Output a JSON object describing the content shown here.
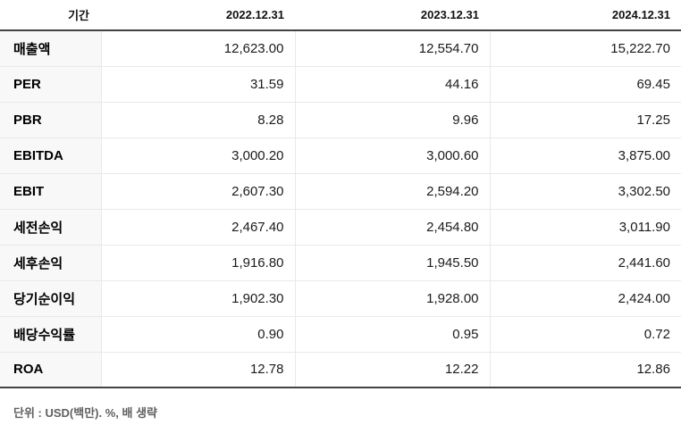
{
  "table": {
    "header": {
      "period_label": "기간",
      "columns": [
        "2022.12.31",
        "2023.12.31",
        "2024.12.31"
      ]
    },
    "rows": [
      {
        "label": "매출액",
        "values": [
          "12,623.00",
          "12,554.70",
          "15,222.70"
        ]
      },
      {
        "label": "PER",
        "values": [
          "31.59",
          "44.16",
          "69.45"
        ]
      },
      {
        "label": "PBR",
        "values": [
          "8.28",
          "9.96",
          "17.25"
        ]
      },
      {
        "label": "EBITDA",
        "values": [
          "3,000.20",
          "3,000.60",
          "3,875.00"
        ]
      },
      {
        "label": "EBIT",
        "values": [
          "2,607.30",
          "2,594.20",
          "3,302.50"
        ]
      },
      {
        "label": "세전손익",
        "values": [
          "2,467.40",
          "2,454.80",
          "3,011.90"
        ]
      },
      {
        "label": "세후손익",
        "values": [
          "1,916.80",
          "1,945.50",
          "2,441.60"
        ]
      },
      {
        "label": "당기순이익",
        "values": [
          "1,902.30",
          "1,928.00",
          "2,424.00"
        ]
      },
      {
        "label": "배당수익률",
        "values": [
          "0.90",
          "0.95",
          "0.72"
        ]
      },
      {
        "label": "ROA",
        "values": [
          "12.78",
          "12.22",
          "12.86"
        ]
      }
    ],
    "footnote": "단위 : USD(백만). %, 배 생략"
  },
  "colors": {
    "header_border": "#424242",
    "row_border": "#e9e9e9",
    "label_column_bg": "#f8f8f8",
    "footnote_text": "#606060"
  },
  "chart_data": {
    "type": "table",
    "columns": [
      "기간",
      "2022.12.31",
      "2023.12.31",
      "2024.12.31"
    ],
    "rows": [
      [
        "매출액",
        "12,623.00",
        "12,554.70",
        "15,222.70"
      ],
      [
        "PER",
        "31.59",
        "44.16",
        "69.45"
      ],
      [
        "PBR",
        "8.28",
        "9.96",
        "17.25"
      ],
      [
        "EBITDA",
        "3,000.20",
        "3,000.60",
        "3,875.00"
      ],
      [
        "EBIT",
        "2,607.30",
        "2,594.20",
        "3,302.50"
      ],
      [
        "세전손익",
        "2,467.40",
        "2,454.80",
        "3,011.90"
      ],
      [
        "세후손익",
        "1,916.80",
        "1,945.50",
        "2,441.60"
      ],
      [
        "당기순이익",
        "1,902.30",
        "1,928.00",
        "2,424.00"
      ],
      [
        "배당수익률",
        "0.90",
        "0.95",
        "0.72"
      ],
      [
        "ROA",
        "12.78",
        "12.22",
        "12.86"
      ]
    ],
    "title": "",
    "footnote": "단위 : USD(백만). %, 배 생략"
  }
}
